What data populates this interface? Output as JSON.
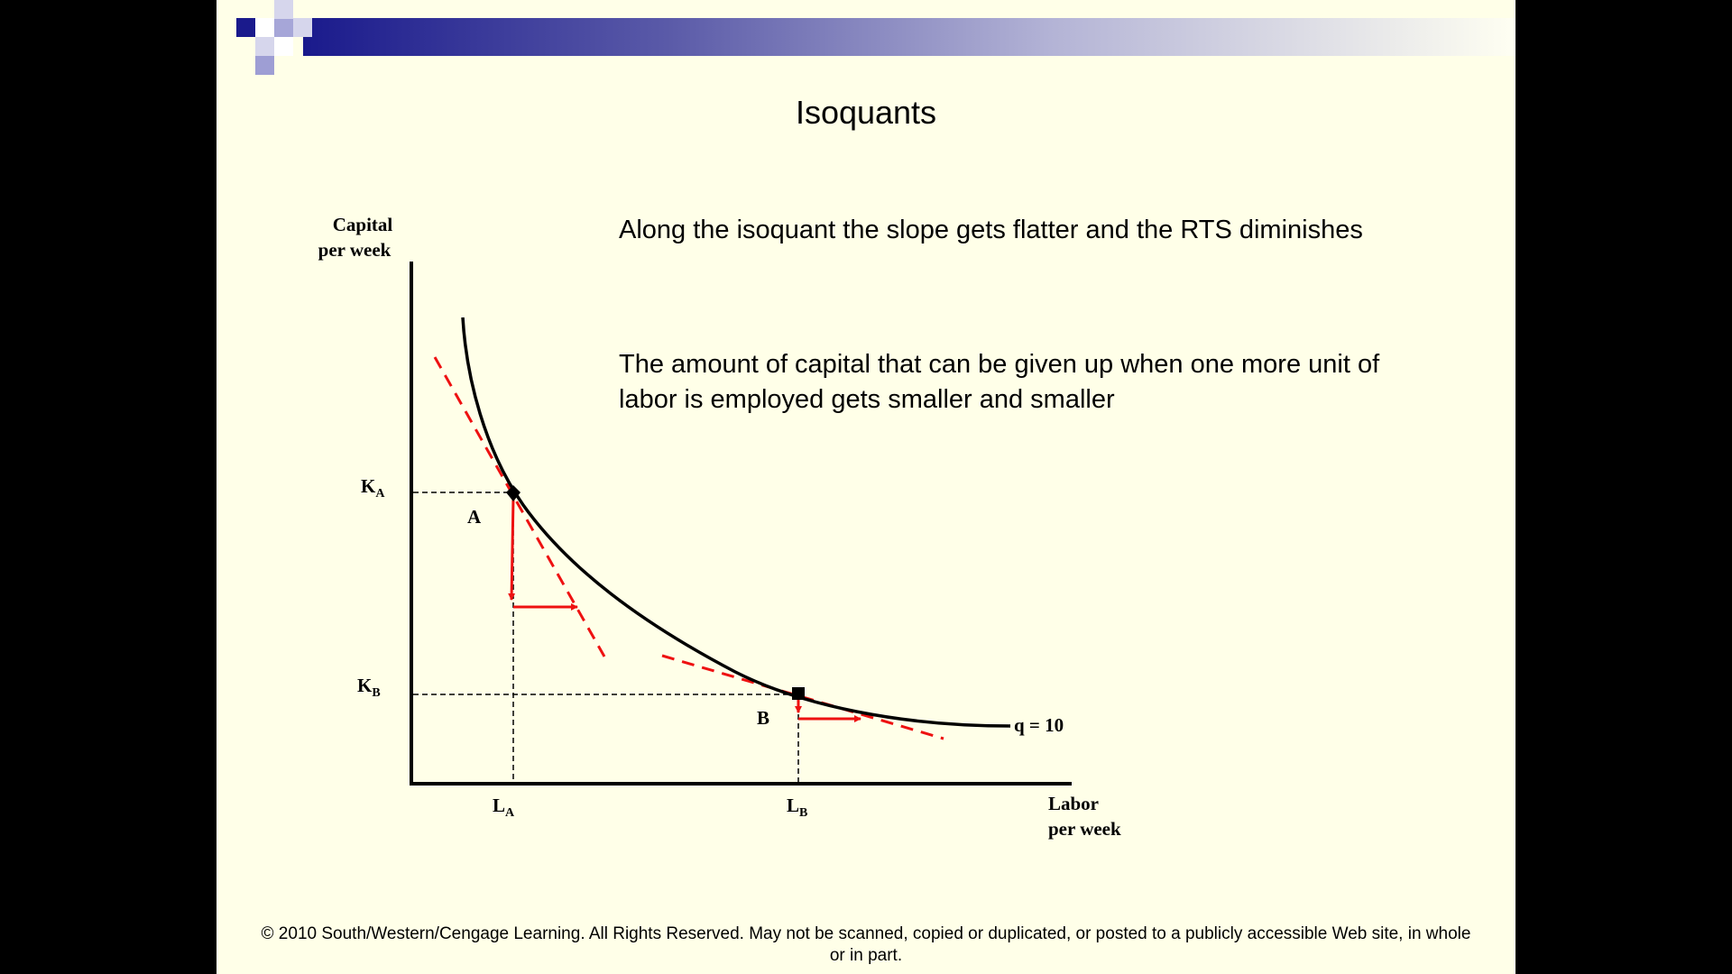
{
  "slide": {
    "title": "Isoquants",
    "text_1": "Along the isoquant the slope gets flatter and the RTS diminishes",
    "text_2_line1": "The amount of capital that can be given up when one more unit of",
    "text_2_line2": "labor is employed gets smaller and smaller",
    "footer_line1": "© 2010 South/Western/Cengage Learning. All Rights Reserved. May not be scanned, copied or duplicated, or posted to a publicly accessible Web site, in whole",
    "footer_line2": "or in part."
  },
  "diagram": {
    "y_axis_label_line1": "Capital",
    "y_axis_label_line2": "per week",
    "x_axis_label_line1": "Labor",
    "x_axis_label_line2": "per week",
    "ka_main": "K",
    "ka_sub": "A",
    "kb_main": "K",
    "kb_sub": "B",
    "la_main": "L",
    "la_sub": "A",
    "lb_main": "L",
    "lb_sub": "B",
    "point_a": "A",
    "point_b": "B",
    "curve_label": "q = 10"
  },
  "colors": {
    "background": "#FFFFE8",
    "header_dark": "#1A1A8C",
    "accent_red": "#EE1111",
    "ink": "#000000"
  }
}
